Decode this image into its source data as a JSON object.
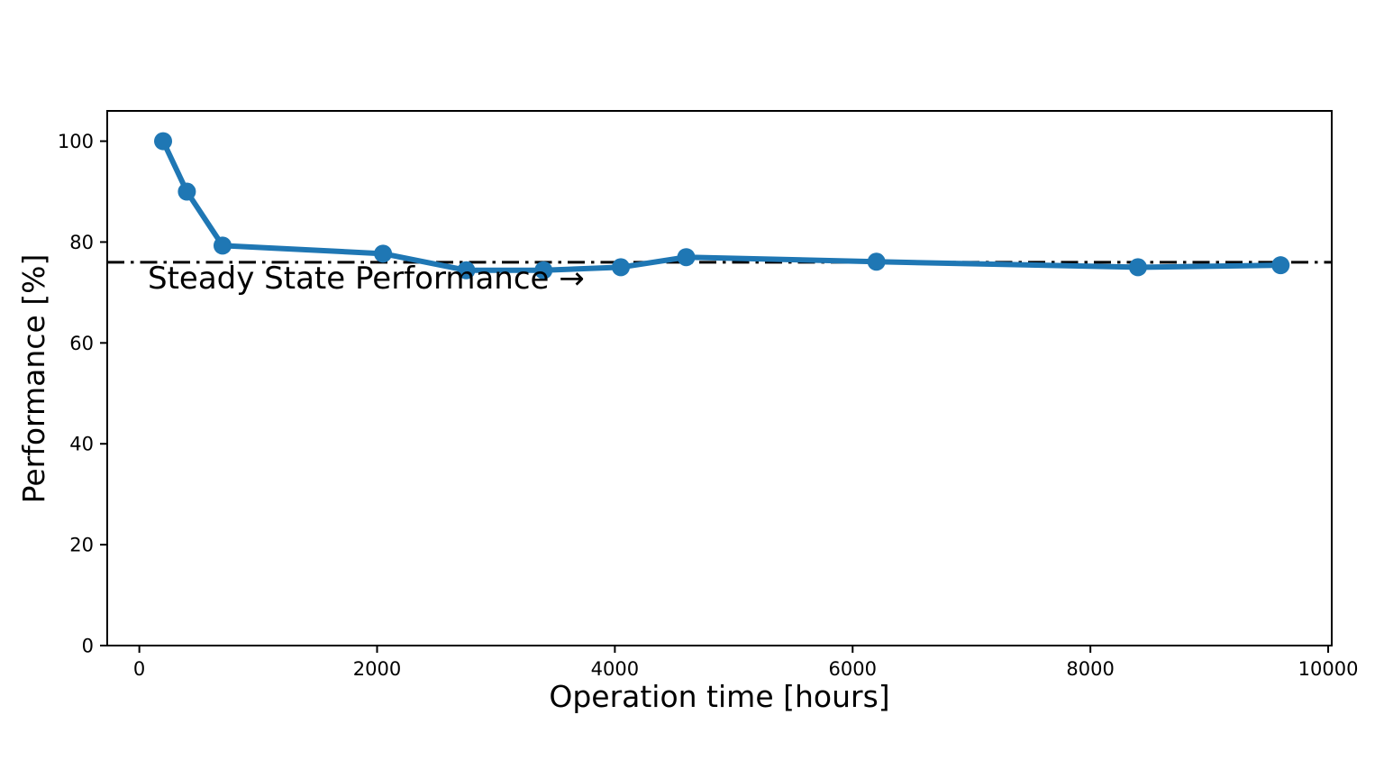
{
  "chart_data": {
    "type": "line",
    "title": "",
    "xlabel": "Operation time [hours]",
    "ylabel": "Performance [%]",
    "x": [
      200,
      400,
      700,
      2050,
      2750,
      3400,
      4050,
      4600,
      6200,
      8400,
      9600
    ],
    "y": [
      100,
      90,
      79.3,
      77.7,
      74.4,
      74.4,
      75,
      77,
      76.1,
      75,
      75.4
    ],
    "series_name": "performance-degradation-curve",
    "line_color": "#1f77b4",
    "marker": "circle",
    "marker_radius": 10,
    "xlim": [
      -270,
      10030
    ],
    "ylim": [
      0,
      106
    ],
    "x_ticks": [
      0,
      2000,
      4000,
      6000,
      8000,
      10000
    ],
    "y_ticks": [
      0,
      20,
      40,
      60,
      80,
      100
    ],
    "grid": false,
    "legend": false,
    "background_color": "#ffffff",
    "reference_line": {
      "value": 76,
      "style": "dash-dot",
      "color": "#000000",
      "label": "Steady State Performance →"
    }
  }
}
